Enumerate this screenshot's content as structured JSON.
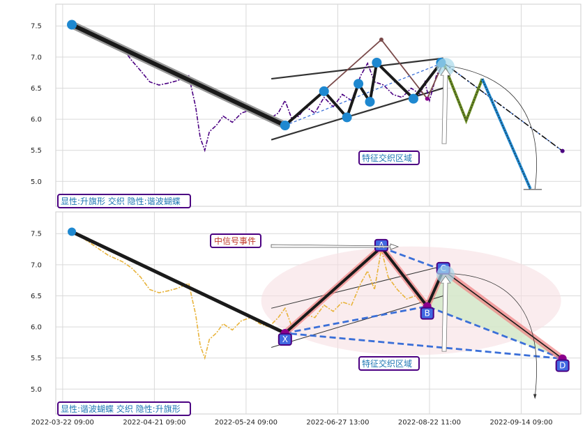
{
  "chart_data": [
    {
      "type": "line",
      "panel": "top",
      "ylim": [
        4.6,
        7.85
      ],
      "yticks": [
        5.0,
        5.5,
        6.0,
        6.5,
        7.0,
        7.5
      ],
      "grid": true,
      "colors": {
        "price": "#4b0082",
        "pattern": "#1a1a1a",
        "nodes": "#1e88d0",
        "channel": "#333333",
        "butterfly": "#7a4a4a",
        "projection_green": "#6b8e23",
        "projection_blue": "#1e88d0"
      },
      "price_path": [
        [
          3,
          7.52
        ],
        [
          8,
          7.45
        ],
        [
          14,
          7.35
        ],
        [
          20,
          7.22
        ],
        [
          26,
          7.15
        ],
        [
          30,
          6.95
        ],
        [
          34,
          6.78
        ],
        [
          38,
          6.6
        ],
        [
          42,
          6.55
        ],
        [
          46,
          6.58
        ],
        [
          50,
          6.62
        ],
        [
          55,
          6.7
        ],
        [
          58,
          6.2
        ],
        [
          60,
          5.7
        ],
        [
          62,
          5.5
        ],
        [
          64,
          5.8
        ],
        [
          67,
          5.9
        ],
        [
          70,
          6.05
        ],
        [
          74,
          5.95
        ],
        [
          78,
          6.1
        ],
        [
          82,
          6.15
        ],
        [
          86,
          6.05
        ],
        [
          90,
          6.0
        ],
        [
          94,
          6.1
        ],
        [
          97,
          6.3
        ],
        [
          100,
          6.0
        ],
        [
          103,
          6.05
        ],
        [
          106,
          6.2
        ],
        [
          110,
          6.1
        ],
        [
          114,
          6.35
        ],
        [
          118,
          6.2
        ],
        [
          122,
          6.4
        ],
        [
          126,
          6.3
        ],
        [
          130,
          6.7
        ],
        [
          133,
          6.9
        ],
        [
          136,
          6.6
        ],
        [
          140,
          6.55
        ],
        [
          144,
          6.4
        ],
        [
          148,
          6.35
        ],
        [
          152,
          6.5
        ],
        [
          156,
          6.4
        ],
        [
          158,
          6.6
        ],
        [
          160,
          6.3
        ],
        [
          163,
          6.7
        ],
        [
          166,
          6.9
        ]
      ],
      "pattern_points": [
        {
          "x": 4,
          "y": 7.52
        },
        {
          "x": 97,
          "y": 5.9
        },
        {
          "x": 114,
          "y": 6.45
        },
        {
          "x": 124,
          "y": 6.03
        },
        {
          "x": 129,
          "y": 6.57
        },
        {
          "x": 134,
          "y": 6.28
        },
        {
          "x": 137,
          "y": 6.91
        },
        {
          "x": 153,
          "y": 6.33
        },
        {
          "x": 165,
          "y": 6.91
        }
      ],
      "channel_lines": [
        [
          [
            91,
            6.65
          ],
          [
            166,
            6.98
          ]
        ],
        [
          [
            91,
            5.67
          ],
          [
            166,
            6.5
          ]
        ]
      ],
      "butterfly_points": [
        [
          97,
          5.9
        ],
        [
          139,
          7.28
        ],
        [
          159,
          6.33
        ],
        [
          166,
          6.91
        ]
      ],
      "projection_dashdot": [
        [
          166,
          6.91
        ],
        [
          218,
          5.49
        ]
      ],
      "projection_dashed": [
        [
          97,
          5.9
        ],
        [
          166,
          6.91
        ],
        [
          218,
          5.49
        ]
      ],
      "green_zigzag": [
        [
          166,
          6.91
        ],
        [
          176,
          5.98
        ],
        [
          183,
          6.65
        ]
      ],
      "blue_leg": [
        [
          183,
          6.65
        ],
        [
          204,
          4.88
        ]
      ],
      "target_end": {
        "x": 218,
        "y": 5.49
      },
      "low_marker": {
        "x": 205,
        "y": 4.87
      },
      "zone_marker": {
        "x": 167,
        "y": 6.84
      },
      "zone_label": "特征交织区域",
      "legend_label": "显性:升旗形 交织 隐性:谐波蝴蝶"
    },
    {
      "type": "line",
      "panel": "bottom",
      "ylim": [
        4.6,
        7.85
      ],
      "yticks": [
        5.0,
        5.5,
        6.0,
        6.5,
        7.0,
        7.5
      ],
      "grid": true,
      "colors": {
        "price": "#e8b33a",
        "pattern": "#1a1a1a",
        "xabcd_fill": "#f3c6cc",
        "xabcd_dashed": "#3a6fd8",
        "bd_fill": "#cfe9c6",
        "node_box": "#4169e1",
        "node_border": "#4b0082"
      },
      "price_path": [
        [
          3,
          7.55
        ],
        [
          8,
          7.45
        ],
        [
          14,
          7.3
        ],
        [
          20,
          7.15
        ],
        [
          26,
          7.05
        ],
        [
          30,
          6.95
        ],
        [
          34,
          6.8
        ],
        [
          38,
          6.6
        ],
        [
          42,
          6.55
        ],
        [
          46,
          6.58
        ],
        [
          50,
          6.62
        ],
        [
          55,
          6.7
        ],
        [
          58,
          6.2
        ],
        [
          60,
          5.7
        ],
        [
          62,
          5.5
        ],
        [
          64,
          5.8
        ],
        [
          67,
          5.9
        ],
        [
          70,
          6.05
        ],
        [
          74,
          5.95
        ],
        [
          78,
          6.1
        ],
        [
          82,
          6.15
        ],
        [
          86,
          6.05
        ],
        [
          90,
          6.0
        ],
        [
          94,
          6.15
        ],
        [
          97,
          6.3
        ],
        [
          100,
          6.0
        ],
        [
          103,
          6.1
        ],
        [
          106,
          6.2
        ],
        [
          110,
          6.15
        ],
        [
          114,
          6.35
        ],
        [
          118,
          6.25
        ],
        [
          122,
          6.4
        ],
        [
          126,
          6.35
        ],
        [
          130,
          6.7
        ],
        [
          133,
          6.9
        ],
        [
          136,
          6.6
        ],
        [
          139,
          7.25
        ],
        [
          142,
          6.8
        ],
        [
          146,
          6.6
        ],
        [
          150,
          6.45
        ],
        [
          154,
          6.5
        ],
        [
          156,
          6.4
        ],
        [
          158,
          6.4
        ]
      ],
      "pattern_points": [
        {
          "x": 4,
          "y": 7.53
        },
        {
          "x": 97,
          "y": 5.9
        }
      ],
      "xabcd_points": [
        {
          "label": "X",
          "x": 97,
          "y": 5.9
        },
        {
          "label": "A",
          "x": 139,
          "y": 7.28
        },
        {
          "label": "B",
          "x": 159,
          "y": 6.33
        },
        {
          "label": "C",
          "x": 166,
          "y": 6.91
        },
        {
          "label": "D",
          "x": 218,
          "y": 5.49
        }
      ],
      "channel_lines": [
        [
          [
            91,
            6.3
          ],
          [
            166,
            6.98
          ]
        ],
        [
          [
            91,
            5.67
          ],
          [
            166,
            6.5
          ]
        ]
      ],
      "event_label": "中信号事件",
      "zone_marker": {
        "x": 167,
        "y": 6.84
      },
      "zone_label": "特征交织区域",
      "legend_label": "显性:谐波蝴蝶 交织 隐性:升旗形"
    }
  ],
  "x_axis": {
    "xlim": [
      -3,
      226
    ],
    "ticks": [
      {
        "x": 0,
        "label": "2022-03-22 09:00"
      },
      {
        "x": 40,
        "label": "2022-04-21 09:00"
      },
      {
        "x": 80,
        "label": "2022-05-24 09:00"
      },
      {
        "x": 120,
        "label": "2022-06-27 13:00"
      },
      {
        "x": 160,
        "label": "2022-08-22 11:00"
      },
      {
        "x": 200,
        "label": "2022-09-14 09:00"
      }
    ]
  }
}
